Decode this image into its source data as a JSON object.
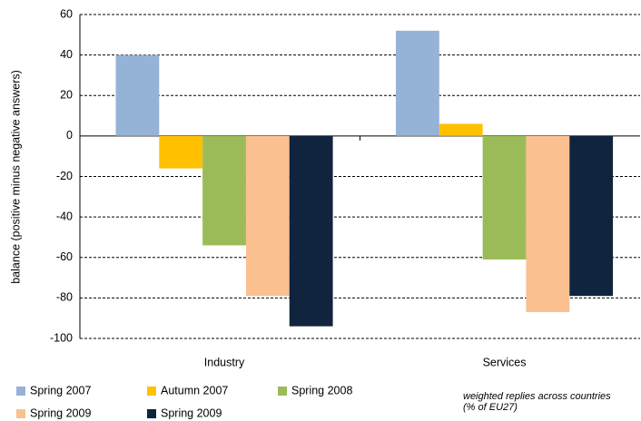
{
  "chart_data": {
    "type": "bar",
    "y_label": "balance (positive minus negative answers)",
    "categories": [
      "Industry",
      "Services"
    ],
    "series": [
      {
        "name": "Spring 2007",
        "color": "#95b3d7",
        "values": [
          40,
          52
        ]
      },
      {
        "name": "Autumn 2007",
        "color": "#ffc000",
        "values": [
          -16,
          6
        ]
      },
      {
        "name": "Spring 2008",
        "color": "#9bbb59",
        "values": [
          -54,
          -61
        ]
      },
      {
        "name": "Spring 2009",
        "color": "#fac090",
        "values": [
          -79,
          -87
        ]
      },
      {
        "name": "Spring 2009",
        "color": "#10243e",
        "values": [
          -94,
          -79
        ]
      }
    ],
    "ylim": [
      -100,
      60
    ],
    "yticks": [
      -100,
      -80,
      -60,
      -40,
      -20,
      0,
      20,
      40,
      60
    ],
    "grid": true,
    "legend": "bottom",
    "annotation": [
      "weighted replies across countries",
      "(% of  EU27)"
    ]
  }
}
